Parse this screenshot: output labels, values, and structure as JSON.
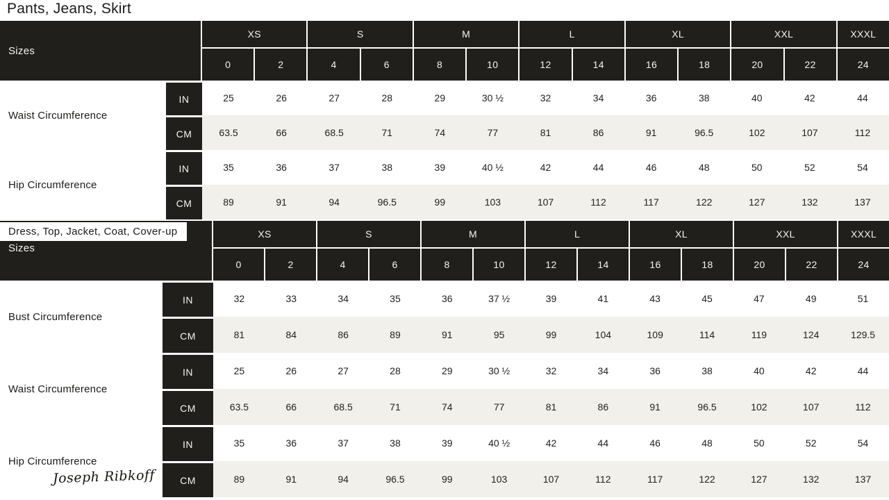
{
  "brand": {
    "logo_text": "Joseph Ribkoff"
  },
  "colors": {
    "dark_header": "#211f1c",
    "light_row": "#f1f0ea",
    "white": "#ffffff",
    "header_text": "#f5f4f0",
    "body_text": "#222120"
  },
  "units": {
    "inches": "IN",
    "centimeters": "CM"
  },
  "size_header": {
    "sizes_label": "Sizes",
    "groups": [
      {
        "label": "XS",
        "span": 2
      },
      {
        "label": "S",
        "span": 2
      },
      {
        "label": "M",
        "span": 2
      },
      {
        "label": "L",
        "span": 2
      },
      {
        "label": "XL",
        "span": 2
      },
      {
        "label": "XXL",
        "span": 2
      },
      {
        "label": "XXXL",
        "span": 1
      }
    ],
    "numbers": [
      "0",
      "2",
      "4",
      "6",
      "8",
      "10",
      "12",
      "14",
      "16",
      "18",
      "20",
      "22",
      "24"
    ]
  },
  "tables": [
    {
      "id": "pants-jeans-skirt",
      "title": "Pants, Jeans, Skirt",
      "measurements": [
        {
          "label": "Waist Circumference",
          "in": [
            "25",
            "26",
            "27",
            "28",
            "29",
            "30 ½",
            "32",
            "34",
            "36",
            "38",
            "40",
            "42",
            "44"
          ],
          "cm": [
            "63.5",
            "66",
            "68.5",
            "71",
            "74",
            "77",
            "81",
            "86",
            "91",
            "96.5",
            "102",
            "107",
            "112"
          ]
        },
        {
          "label": "Hip Circumference",
          "in": [
            "35",
            "36",
            "37",
            "38",
            "39",
            "40 ½",
            "42",
            "44",
            "46",
            "48",
            "50",
            "52",
            "54"
          ],
          "cm": [
            "89",
            "91",
            "94",
            "96.5",
            "99",
            "103",
            "107",
            "112",
            "117",
            "122",
            "127",
            "132",
            "137"
          ]
        }
      ]
    },
    {
      "id": "dress-top-jacket-coat-coverup",
      "title": "Dress, Top, Jacket, Coat, Cover-up",
      "measurements": [
        {
          "label": "Bust Circumference",
          "in": [
            "32",
            "33",
            "34",
            "35",
            "36",
            "37 ½",
            "39",
            "41",
            "43",
            "45",
            "47",
            "49",
            "51"
          ],
          "cm": [
            "81",
            "84",
            "86",
            "89",
            "91",
            "95",
            "99",
            "104",
            "109",
            "114",
            "119",
            "124",
            "129.5"
          ]
        },
        {
          "label": "Waist Circumference",
          "in": [
            "25",
            "26",
            "27",
            "28",
            "29",
            "30 ½",
            "32",
            "34",
            "36",
            "38",
            "40",
            "42",
            "44"
          ],
          "cm": [
            "63.5",
            "66",
            "68.5",
            "71",
            "74",
            "77",
            "81",
            "86",
            "91",
            "96.5",
            "102",
            "107",
            "112"
          ]
        },
        {
          "label": "Hip Circumference",
          "in": [
            "35",
            "36",
            "37",
            "38",
            "39",
            "40 ½",
            "42",
            "44",
            "46",
            "48",
            "50",
            "52",
            "54"
          ],
          "cm": [
            "89",
            "91",
            "94",
            "96.5",
            "99",
            "103",
            "107",
            "112",
            "117",
            "122",
            "127",
            "132",
            "137"
          ]
        }
      ]
    }
  ]
}
